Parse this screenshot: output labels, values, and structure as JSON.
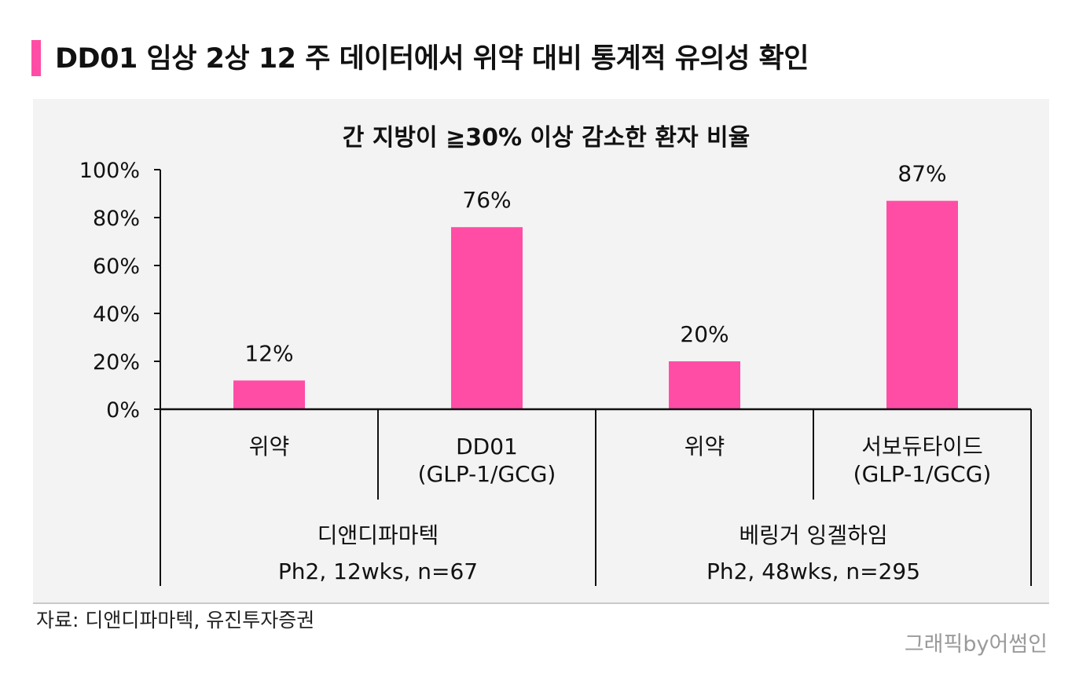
{
  "headline": "DD01 임상 2상 12 주 데이터에서 위약 대비 통계적 유의성 확인",
  "accent_color": "#ff4da6",
  "chart_data": {
    "type": "bar",
    "title": "간 지방이 ≧30% 이상 감소한 환자 비율",
    "xlabel": "",
    "ylabel": "",
    "ylim": [
      0,
      100
    ],
    "yticks": [
      "0%",
      "20%",
      "40%",
      "60%",
      "80%",
      "100%"
    ],
    "categories": [
      "위약",
      "DD01\n(GLP-1/GCG)",
      "위약",
      "서보듀타이드\n(GLP-1/GCG)"
    ],
    "values": [
      12,
      76,
      20,
      87
    ],
    "data_labels": [
      "12%",
      "76%",
      "20%",
      "87%"
    ],
    "groups": [
      {
        "label": "디앤디파마텍",
        "sublabel": "Ph2, 12wks, n=67"
      },
      {
        "label": "베링거 잉겔하임",
        "sublabel": "Ph2, 48wks, n=295"
      }
    ],
    "bar_color": "#ff4da6",
    "grid": false,
    "legend": "none"
  },
  "footer": {
    "source": "자료: 디앤디파마텍, 유진투자증권",
    "credit": "그래픽by어썸인"
  }
}
